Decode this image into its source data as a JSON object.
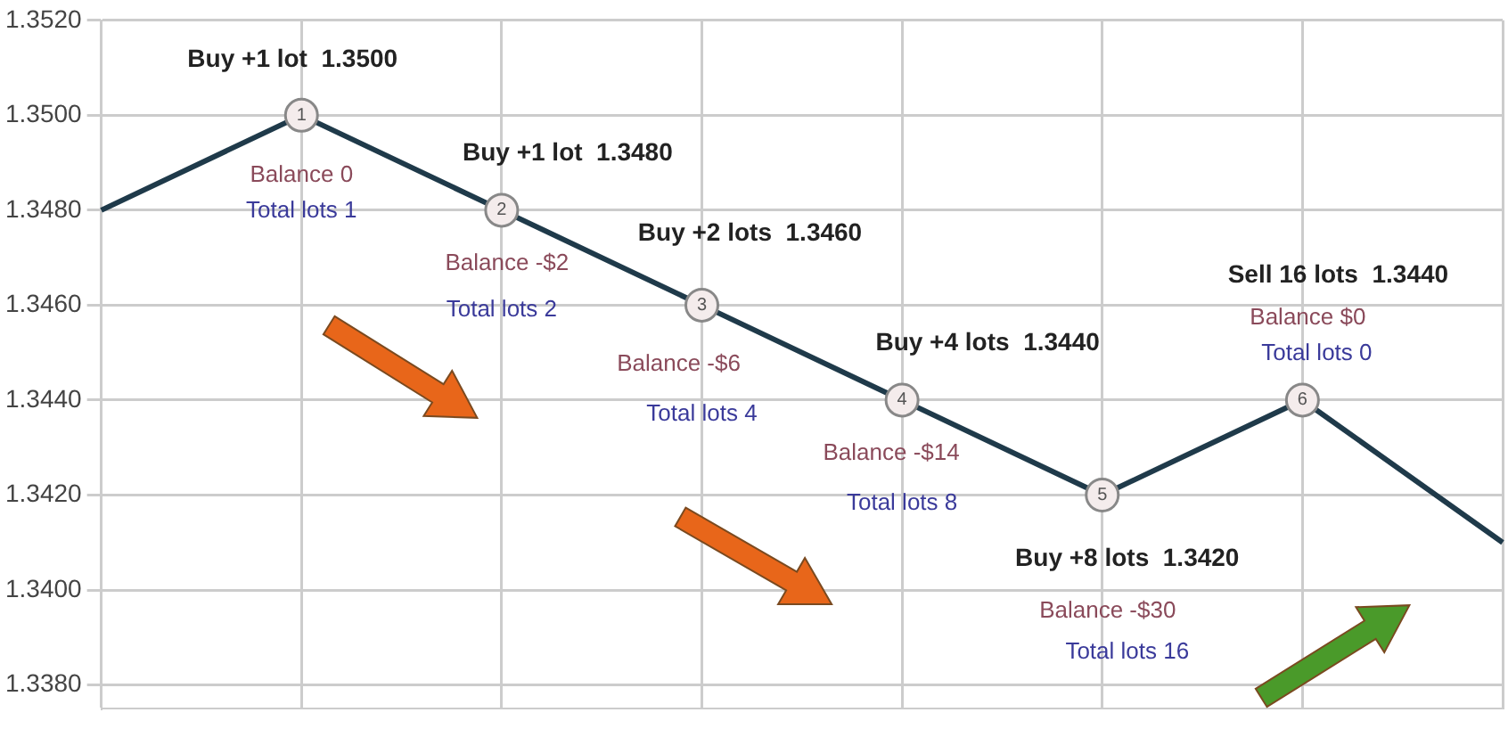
{
  "chart_data": {
    "type": "line",
    "categories": [
      null,
      null,
      null,
      null,
      null,
      null,
      null,
      null
    ],
    "series": [
      {
        "color": "#1f3a4a",
        "values": [
          1.348,
          1.35,
          1.348,
          1.346,
          1.344,
          1.342,
          1.344,
          1.341
        ]
      }
    ],
    "ylim": [
      1.3375,
      1.352
    ],
    "yticks": [
      {
        "value": 1.338,
        "label": "1.3380"
      },
      {
        "value": 1.34,
        "label": "1.3400"
      },
      {
        "value": 1.342,
        "label": "1.3420"
      },
      {
        "value": 1.344,
        "label": "1.3440"
      },
      {
        "value": 1.346,
        "label": "1.3460"
      },
      {
        "value": 1.348,
        "label": "1.3480"
      },
      {
        "value": 1.35,
        "label": "1.3500"
      },
      {
        "value": 1.352,
        "label": "1.3520"
      }
    ],
    "grid": true,
    "legend": false,
    "tick_labels": "y",
    "line_style": "solid",
    "marker": "circle",
    "annotations": [
      {
        "text": "1",
        "y": 1.35
      },
      "Buy +1 lot  1.3500",
      "Balance 0",
      "Total lots 1",
      {
        "text": "2",
        "y": 1.348
      },
      "Buy +1 lot  1.3480",
      "Balance -$2",
      "Total lots 2",
      {
        "text": "3",
        "y": 1.346
      },
      "Buy +2 lots  1.3460",
      "Balance -$6",
      "Total lots 4",
      {
        "text": "4",
        "y": 1.344
      },
      "Buy +4 lots  1.3440",
      "Balance -$14",
      "Total lots 8",
      {
        "text": "5",
        "y": 1.342
      },
      "Buy +8 lots  1.3420",
      "Balance -$30",
      "Total lots 16",
      {
        "text": "6",
        "y": 1.344
      },
      "Sell 16 lots  1.3440",
      "Balance $0",
      "Total lots 0"
    ]
  }
}
